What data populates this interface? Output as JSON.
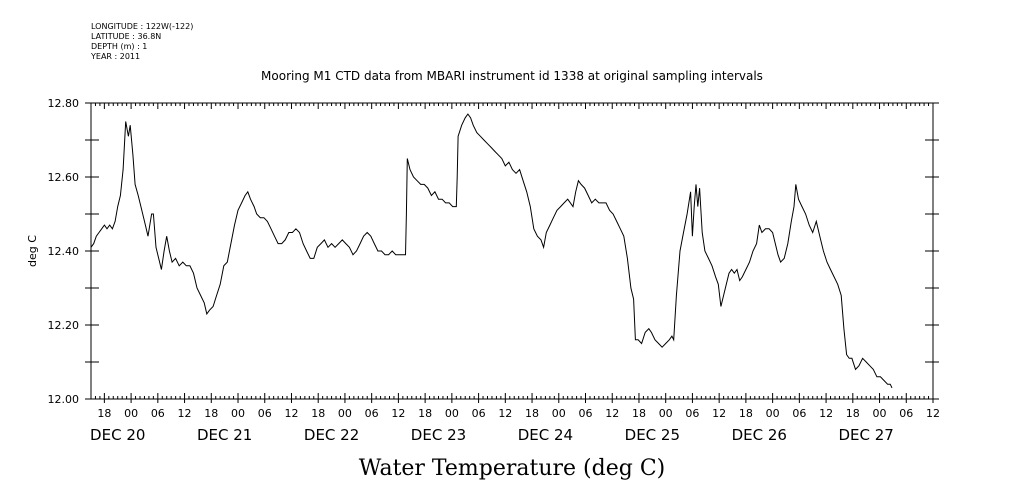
{
  "header": {
    "lines": [
      "LONGITUDE : 122W(-122)",
      "LATITUDE : 36.8N",
      "DEPTH (m) : 1",
      "YEAR : 2011"
    ]
  },
  "chart_data": {
    "type": "line",
    "title": "Mooring M1 CTD data from MBARI instrument id 1338 at original sampling intervals",
    "xlabel": "Water Temperature (deg C)",
    "ylabel": "deg C",
    "ylim": [
      12.0,
      12.8
    ],
    "y_ticks": [
      "12.00",
      "12.20",
      "12.40",
      "12.60",
      "12.80"
    ],
    "xlim_hours": [
      -9,
      180
    ],
    "x_hour_labels": [
      {
        "h": -6,
        "label": "18"
      },
      {
        "h": 0,
        "label": "00"
      },
      {
        "h": 6,
        "label": "06"
      },
      {
        "h": 12,
        "label": "12"
      },
      {
        "h": 18,
        "label": "18"
      },
      {
        "h": 24,
        "label": "00"
      },
      {
        "h": 30,
        "label": "06"
      },
      {
        "h": 36,
        "label": "12"
      },
      {
        "h": 42,
        "label": "18"
      },
      {
        "h": 48,
        "label": "00"
      },
      {
        "h": 54,
        "label": "06"
      },
      {
        "h": 60,
        "label": "12"
      },
      {
        "h": 66,
        "label": "18"
      },
      {
        "h": 72,
        "label": "00"
      },
      {
        "h": 78,
        "label": "06"
      },
      {
        "h": 84,
        "label": "12"
      },
      {
        "h": 90,
        "label": "18"
      },
      {
        "h": 96,
        "label": "00"
      },
      {
        "h": 102,
        "label": "06"
      },
      {
        "h": 108,
        "label": "12"
      },
      {
        "h": 114,
        "label": "18"
      },
      {
        "h": 120,
        "label": "00"
      },
      {
        "h": 126,
        "label": "06"
      },
      {
        "h": 132,
        "label": "12"
      },
      {
        "h": 138,
        "label": "18"
      },
      {
        "h": 144,
        "label": "00"
      },
      {
        "h": 150,
        "label": "06"
      },
      {
        "h": 156,
        "label": "12"
      },
      {
        "h": 162,
        "label": "18"
      },
      {
        "h": 168,
        "label": "00"
      },
      {
        "h": 174,
        "label": "06"
      },
      {
        "h": 180,
        "label": "12"
      }
    ],
    "x_day_labels": [
      {
        "h": -3,
        "label": "DEC 20"
      },
      {
        "h": 21,
        "label": "DEC 21"
      },
      {
        "h": 45,
        "label": "DEC 22"
      },
      {
        "h": 69,
        "label": "DEC 23"
      },
      {
        "h": 93,
        "label": "DEC 24"
      },
      {
        "h": 117,
        "label": "DEC 25"
      },
      {
        "h": 141,
        "label": "DEC 26"
      },
      {
        "h": 165,
        "label": "DEC 27"
      }
    ],
    "series": [
      {
        "color": "#000000",
        "points": [
          [
            -9.0,
            12.41
          ],
          [
            -8.4,
            12.42
          ],
          [
            -7.8,
            12.44
          ],
          [
            -7.2,
            12.45
          ],
          [
            -6.6,
            12.46
          ],
          [
            -6.0,
            12.47
          ],
          [
            -5.4,
            12.46
          ],
          [
            -4.8,
            12.47
          ],
          [
            -4.2,
            12.46
          ],
          [
            -3.6,
            12.48
          ],
          [
            -3.0,
            12.52
          ],
          [
            -2.4,
            12.55
          ],
          [
            -1.8,
            12.62
          ],
          [
            -1.2,
            12.75
          ],
          [
            -0.6,
            12.71
          ],
          [
            -0.2,
            12.74
          ],
          [
            0.4,
            12.66
          ],
          [
            0.9,
            12.58
          ],
          [
            1.6,
            12.55
          ],
          [
            2.4,
            12.51
          ],
          [
            3.2,
            12.47
          ],
          [
            3.8,
            12.44
          ],
          [
            4.6,
            12.5
          ],
          [
            5.0,
            12.5
          ],
          [
            5.6,
            12.41
          ],
          [
            6.2,
            12.38
          ],
          [
            6.8,
            12.35
          ],
          [
            7.4,
            12.4
          ],
          [
            8.0,
            12.44
          ],
          [
            8.6,
            12.4
          ],
          [
            9.2,
            12.37
          ],
          [
            10.0,
            12.38
          ],
          [
            10.8,
            12.36
          ],
          [
            11.6,
            12.37
          ],
          [
            12.4,
            12.36
          ],
          [
            13.2,
            12.36
          ],
          [
            14.0,
            12.34
          ],
          [
            14.8,
            12.3
          ],
          [
            15.6,
            12.28
          ],
          [
            16.4,
            12.26
          ],
          [
            17.0,
            12.23
          ],
          [
            17.6,
            12.24
          ],
          [
            18.4,
            12.25
          ],
          [
            19.2,
            12.28
          ],
          [
            20.0,
            12.31
          ],
          [
            20.8,
            12.36
          ],
          [
            21.6,
            12.37
          ],
          [
            22.4,
            12.42
          ],
          [
            23.2,
            12.47
          ],
          [
            24.0,
            12.51
          ],
          [
            24.8,
            12.53
          ],
          [
            25.6,
            12.55
          ],
          [
            26.2,
            12.56
          ],
          [
            26.8,
            12.54
          ],
          [
            27.6,
            12.52
          ],
          [
            28.2,
            12.5
          ],
          [
            29.0,
            12.49
          ],
          [
            29.8,
            12.49
          ],
          [
            30.6,
            12.48
          ],
          [
            31.4,
            12.46
          ],
          [
            32.2,
            12.44
          ],
          [
            33.0,
            12.42
          ],
          [
            33.8,
            12.42
          ],
          [
            34.6,
            12.43
          ],
          [
            35.4,
            12.45
          ],
          [
            36.2,
            12.45
          ],
          [
            37.0,
            12.46
          ],
          [
            37.8,
            12.45
          ],
          [
            38.6,
            12.42
          ],
          [
            39.4,
            12.4
          ],
          [
            40.2,
            12.38
          ],
          [
            41.0,
            12.38
          ],
          [
            41.8,
            12.41
          ],
          [
            42.6,
            12.42
          ],
          [
            43.4,
            12.43
          ],
          [
            44.2,
            12.41
          ],
          [
            45.0,
            12.42
          ],
          [
            45.8,
            12.41
          ],
          [
            46.6,
            12.42
          ],
          [
            47.4,
            12.43
          ],
          [
            48.2,
            12.42
          ],
          [
            49.0,
            12.41
          ],
          [
            49.8,
            12.39
          ],
          [
            50.6,
            12.4
          ],
          [
            51.4,
            12.42
          ],
          [
            52.2,
            12.44
          ],
          [
            53.0,
            12.45
          ],
          [
            53.8,
            12.44
          ],
          [
            54.6,
            12.42
          ],
          [
            55.4,
            12.4
          ],
          [
            56.2,
            12.4
          ],
          [
            57.0,
            12.39
          ],
          [
            57.8,
            12.39
          ],
          [
            58.6,
            12.4
          ],
          [
            59.4,
            12.39
          ],
          [
            60.2,
            12.39
          ],
          [
            61.0,
            12.39
          ],
          [
            61.6,
            12.39
          ],
          [
            61.8,
            12.5
          ],
          [
            62.0,
            12.65
          ],
          [
            62.6,
            12.62
          ],
          [
            63.4,
            12.6
          ],
          [
            64.2,
            12.59
          ],
          [
            65.0,
            12.58
          ],
          [
            65.8,
            12.58
          ],
          [
            66.6,
            12.57
          ],
          [
            67.4,
            12.55
          ],
          [
            68.2,
            12.56
          ],
          [
            69.0,
            12.54
          ],
          [
            69.8,
            12.54
          ],
          [
            70.6,
            12.53
          ],
          [
            71.4,
            12.53
          ],
          [
            72.2,
            12.52
          ],
          [
            73.0,
            12.52
          ],
          [
            73.2,
            12.6
          ],
          [
            73.4,
            12.71
          ],
          [
            74.2,
            12.74
          ],
          [
            75.0,
            12.76
          ],
          [
            75.6,
            12.77
          ],
          [
            76.2,
            12.76
          ],
          [
            76.8,
            12.74
          ],
          [
            77.6,
            12.72
          ],
          [
            78.4,
            12.71
          ],
          [
            79.2,
            12.7
          ],
          [
            80.0,
            12.69
          ],
          [
            80.8,
            12.68
          ],
          [
            81.6,
            12.67
          ],
          [
            82.4,
            12.66
          ],
          [
            83.2,
            12.65
          ],
          [
            84.0,
            12.63
          ],
          [
            84.8,
            12.64
          ],
          [
            85.6,
            12.62
          ],
          [
            86.4,
            12.61
          ],
          [
            87.2,
            12.62
          ],
          [
            88.0,
            12.59
          ],
          [
            88.8,
            12.56
          ],
          [
            89.6,
            12.52
          ],
          [
            90.4,
            12.46
          ],
          [
            91.2,
            12.44
          ],
          [
            92.0,
            12.43
          ],
          [
            92.6,
            12.41
          ],
          [
            93.2,
            12.45
          ],
          [
            94.0,
            12.47
          ],
          [
            94.8,
            12.49
          ],
          [
            95.6,
            12.51
          ],
          [
            96.4,
            12.52
          ],
          [
            97.2,
            12.53
          ],
          [
            98.0,
            12.54
          ],
          [
            98.6,
            12.53
          ],
          [
            99.2,
            12.52
          ],
          [
            99.8,
            12.56
          ],
          [
            100.4,
            12.59
          ],
          [
            101.0,
            12.58
          ],
          [
            101.8,
            12.57
          ],
          [
            102.6,
            12.55
          ],
          [
            103.4,
            12.53
          ],
          [
            104.2,
            12.54
          ],
          [
            105.0,
            12.53
          ],
          [
            105.8,
            12.53
          ],
          [
            106.6,
            12.53
          ],
          [
            107.4,
            12.51
          ],
          [
            108.2,
            12.5
          ],
          [
            109.0,
            12.48
          ],
          [
            109.8,
            12.46
          ],
          [
            110.6,
            12.44
          ],
          [
            111.4,
            12.38
          ],
          [
            112.2,
            12.3
          ],
          [
            112.8,
            12.27
          ],
          [
            113.2,
            12.16
          ],
          [
            113.8,
            12.16
          ],
          [
            114.6,
            12.15
          ],
          [
            115.4,
            12.18
          ],
          [
            116.2,
            12.19
          ],
          [
            116.8,
            12.18
          ],
          [
            117.6,
            12.16
          ],
          [
            118.4,
            12.15
          ],
          [
            119.2,
            12.14
          ],
          [
            120.0,
            12.15
          ],
          [
            120.8,
            12.16
          ],
          [
            121.4,
            12.17
          ],
          [
            121.8,
            12.16
          ],
          [
            122.4,
            12.28
          ],
          [
            123.2,
            12.4
          ],
          [
            124.0,
            12.45
          ],
          [
            124.8,
            12.5
          ],
          [
            125.6,
            12.56
          ],
          [
            126.0,
            12.44
          ],
          [
            126.4,
            12.52
          ],
          [
            126.8,
            12.58
          ],
          [
            127.2,
            12.52
          ],
          [
            127.6,
            12.57
          ],
          [
            128.2,
            12.45
          ],
          [
            128.8,
            12.4
          ],
          [
            129.6,
            12.38
          ],
          [
            130.4,
            12.36
          ],
          [
            131.2,
            12.33
          ],
          [
            131.8,
            12.31
          ],
          [
            132.4,
            12.25
          ],
          [
            133.0,
            12.28
          ],
          [
            133.6,
            12.31
          ],
          [
            134.2,
            12.34
          ],
          [
            134.8,
            12.35
          ],
          [
            135.4,
            12.34
          ],
          [
            136.0,
            12.35
          ],
          [
            136.6,
            12.32
          ],
          [
            137.2,
            12.33
          ],
          [
            138.0,
            12.35
          ],
          [
            138.8,
            12.37
          ],
          [
            139.6,
            12.4
          ],
          [
            140.4,
            12.42
          ],
          [
            141.0,
            12.47
          ],
          [
            141.6,
            12.45
          ],
          [
            142.4,
            12.46
          ],
          [
            143.2,
            12.46
          ],
          [
            144.0,
            12.45
          ],
          [
            144.6,
            12.42
          ],
          [
            145.2,
            12.39
          ],
          [
            145.8,
            12.37
          ],
          [
            146.6,
            12.38
          ],
          [
            147.4,
            12.42
          ],
          [
            148.2,
            12.48
          ],
          [
            148.8,
            12.52
          ],
          [
            149.2,
            12.58
          ],
          [
            149.8,
            12.54
          ],
          [
            150.6,
            12.52
          ],
          [
            151.4,
            12.5
          ],
          [
            152.2,
            12.47
          ],
          [
            153.0,
            12.45
          ],
          [
            153.8,
            12.48
          ],
          [
            154.6,
            12.44
          ],
          [
            155.4,
            12.4
          ],
          [
            156.2,
            12.37
          ],
          [
            157.0,
            12.35
          ],
          [
            157.8,
            12.33
          ],
          [
            158.6,
            12.31
          ],
          [
            159.4,
            12.28
          ],
          [
            160.0,
            12.19
          ],
          [
            160.6,
            12.12
          ],
          [
            161.2,
            12.11
          ],
          [
            161.8,
            12.11
          ],
          [
            162.6,
            12.08
          ],
          [
            163.4,
            12.09
          ],
          [
            164.2,
            12.11
          ],
          [
            165.0,
            12.1
          ],
          [
            165.8,
            12.09
          ],
          [
            166.6,
            12.08
          ],
          [
            167.4,
            12.06
          ],
          [
            168.2,
            12.06
          ],
          [
            169.0,
            12.05
          ],
          [
            169.8,
            12.04
          ],
          [
            170.4,
            12.04
          ],
          [
            170.8,
            12.03
          ]
        ]
      }
    ]
  }
}
